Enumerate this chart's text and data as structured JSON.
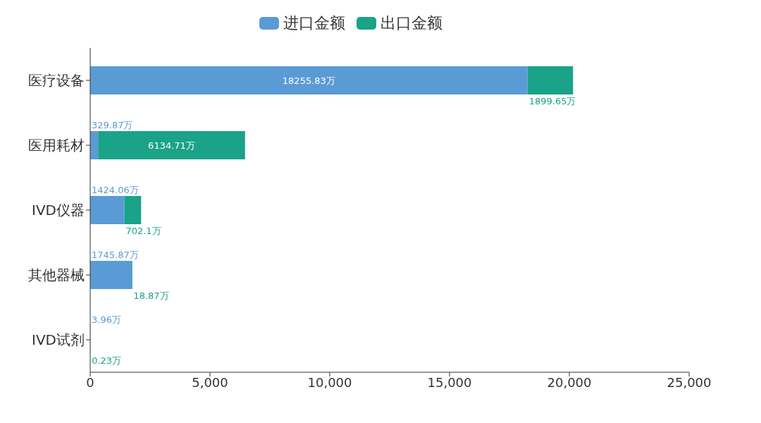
{
  "chart_data": {
    "type": "bar",
    "orientation": "horizontal",
    "stacked": true,
    "categories": [
      "医疗设备",
      "医用耗材",
      "IVD仪器",
      "其他器械",
      "IVD试剂"
    ],
    "series": [
      {
        "name": "进口金额",
        "color": "#5b9bd5",
        "values": [
          18255.83,
          329.87,
          1424.06,
          1745.87,
          3.96
        ],
        "value_labels": [
          "18255.83万",
          "329.87万",
          "1424.06万",
          "1745.87万",
          "3.96万"
        ]
      },
      {
        "name": "出口金额",
        "color": "#1aa388",
        "values": [
          1899.65,
          6134.71,
          702.1,
          18.87,
          0.23
        ],
        "value_labels": [
          "1899.65万",
          "6134.71万",
          "702.1万",
          "18.87万",
          "0.23万"
        ]
      }
    ],
    "xlim": [
      0,
      25000
    ],
    "xticks": [
      0,
      {
        "value": 5000,
        "label": "5,000"
      },
      {
        "value": 10000,
        "label": "10,000"
      },
      {
        "value": 15000,
        "label": "15,000"
      },
      {
        "value": 20000,
        "label": "20,000"
      },
      {
        "value": 25000,
        "label": "25,000"
      }
    ],
    "grid": false,
    "legend": "top"
  }
}
